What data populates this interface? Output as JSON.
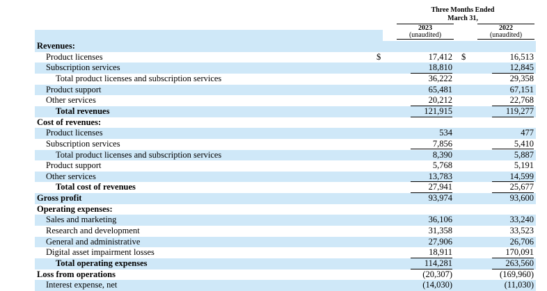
{
  "header": {
    "title_line1": "Three Months Ended",
    "title_line2": "March 31,",
    "columns": [
      {
        "year": "2023",
        "note": "(unaudited)"
      },
      {
        "year": "2022",
        "note": "(unaudited)"
      }
    ]
  },
  "rows": [
    {
      "label": "Revenues:",
      "style": "section"
    },
    {
      "label": "Product licenses",
      "style": "item",
      "currency": [
        "$",
        "$"
      ],
      "values": [
        "17,412",
        "16,513"
      ]
    },
    {
      "label": "Subscription services",
      "style": "item",
      "values": [
        "18,810",
        "12,845"
      ],
      "rule": true
    },
    {
      "label": "Total product licenses and subscription services",
      "style": "subitem",
      "values": [
        "36,222",
        "29,358"
      ]
    },
    {
      "label": "Product support",
      "style": "item",
      "values": [
        "65,481",
        "67,151"
      ]
    },
    {
      "label": "Other services",
      "style": "item",
      "values": [
        "20,212",
        "22,768"
      ],
      "rule": true
    },
    {
      "label": "Total revenues",
      "style": "total",
      "values": [
        "121,915",
        "119,277"
      ],
      "rule": true
    },
    {
      "label": "Cost of revenues:",
      "style": "section"
    },
    {
      "label": "Product licenses",
      "style": "item",
      "values": [
        "534",
        "477"
      ]
    },
    {
      "label": "Subscription services",
      "style": "item",
      "values": [
        "7,856",
        "5,410"
      ],
      "rule": true
    },
    {
      "label": "Total product licenses and subscription services",
      "style": "subitem",
      "values": [
        "8,390",
        "5,887"
      ]
    },
    {
      "label": "Product support",
      "style": "item",
      "values": [
        "5,768",
        "5,191"
      ]
    },
    {
      "label": "Other services",
      "style": "item",
      "values": [
        "13,783",
        "14,599"
      ],
      "rule": true
    },
    {
      "label": "Total cost of revenues",
      "style": "total",
      "values": [
        "27,941",
        "25,677"
      ],
      "rule": true
    },
    {
      "label": "Gross profit",
      "style": "section",
      "values": [
        "93,974",
        "93,600"
      ]
    },
    {
      "label": "Operating expenses:",
      "style": "section"
    },
    {
      "label": "Sales and marketing",
      "style": "item",
      "values": [
        "36,106",
        "33,240"
      ]
    },
    {
      "label": "Research and development",
      "style": "item",
      "values": [
        "31,358",
        "33,523"
      ]
    },
    {
      "label": "General and administrative",
      "style": "item",
      "values": [
        "27,906",
        "26,706"
      ]
    },
    {
      "label": "Digital asset impairment losses",
      "style": "item",
      "values": [
        "18,911",
        "170,091"
      ],
      "rule": true
    },
    {
      "label": "Total operating expenses",
      "style": "total",
      "values": [
        "114,281",
        "263,560"
      ],
      "rule": true
    },
    {
      "label": "Loss from operations",
      "style": "section",
      "values": [
        "(20,307)",
        "(169,960)"
      ]
    },
    {
      "label": "Interest expense, net",
      "style": "item",
      "values": [
        "(14,030)",
        "(11,030)"
      ]
    }
  ]
}
